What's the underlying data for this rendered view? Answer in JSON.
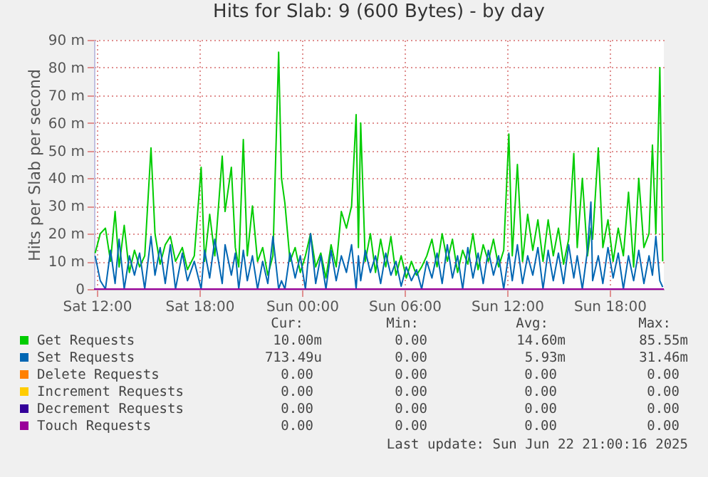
{
  "chart_data": {
    "type": "line",
    "title": "Hits for Slab: 9 (600 Bytes) - by day",
    "ylabel": "Hits per Slab per second",
    "x": [
      "2025-06-21T11:54",
      "2025-06-21T12:12",
      "2025-06-21T12:30",
      "2025-06-21T12:48",
      "2025-06-21T13:04",
      "2025-06-21T13:18",
      "2025-06-21T13:36",
      "2025-06-21T13:54",
      "2025-06-21T14:12",
      "2025-06-21T14:30",
      "2025-06-21T14:48",
      "2025-06-21T15:10",
      "2025-06-21T15:24",
      "2025-06-21T15:42",
      "2025-06-21T16:00",
      "2025-06-21T16:18",
      "2025-06-21T16:36",
      "2025-06-21T17:00",
      "2025-06-21T17:18",
      "2025-06-21T17:42",
      "2025-06-21T18:06",
      "2025-06-21T18:18",
      "2025-06-21T18:36",
      "2025-06-21T18:54",
      "2025-06-21T19:20",
      "2025-06-21T19:30",
      "2025-06-21T19:52",
      "2025-06-21T20:06",
      "2025-06-21T20:18",
      "2025-06-21T20:34",
      "2025-06-21T20:48",
      "2025-06-21T21:06",
      "2025-06-21T21:24",
      "2025-06-21T21:42",
      "2025-06-21T22:00",
      "2025-06-21T22:18",
      "2025-06-21T22:38",
      "2025-06-21T22:48",
      "2025-06-21T23:00",
      "2025-06-21T23:18",
      "2025-06-21T23:36",
      "2025-06-21T23:54",
      "2025-06-22T00:12",
      "2025-06-22T00:30",
      "2025-06-22T00:48",
      "2025-06-22T01:06",
      "2025-06-22T01:24",
      "2025-06-22T01:42",
      "2025-06-22T02:00",
      "2025-06-22T02:18",
      "2025-06-22T02:36",
      "2025-06-22T02:54",
      "2025-06-22T03:10",
      "2025-06-22T03:18",
      "2025-06-22T03:26",
      "2025-06-22T03:42",
      "2025-06-22T04:00",
      "2025-06-22T04:18",
      "2025-06-22T04:36",
      "2025-06-22T04:54",
      "2025-06-22T05:12",
      "2025-06-22T05:30",
      "2025-06-22T05:48",
      "2025-06-22T06:06",
      "2025-06-22T06:24",
      "2025-06-22T06:42",
      "2025-06-22T07:00",
      "2025-06-22T07:18",
      "2025-06-22T07:36",
      "2025-06-22T07:54",
      "2025-06-22T08:12",
      "2025-06-22T08:30",
      "2025-06-22T08:48",
      "2025-06-22T09:06",
      "2025-06-22T09:24",
      "2025-06-22T09:42",
      "2025-06-22T10:00",
      "2025-06-22T10:18",
      "2025-06-22T10:36",
      "2025-06-22T10:54",
      "2025-06-22T11:12",
      "2025-06-22T11:30",
      "2025-06-22T11:48",
      "2025-06-22T12:06",
      "2025-06-22T12:18",
      "2025-06-22T12:36",
      "2025-06-22T12:54",
      "2025-06-22T13:12",
      "2025-06-22T13:30",
      "2025-06-22T13:48",
      "2025-06-22T14:06",
      "2025-06-22T14:24",
      "2025-06-22T14:42",
      "2025-06-22T15:00",
      "2025-06-22T15:18",
      "2025-06-22T15:36",
      "2025-06-22T15:54",
      "2025-06-22T16:06",
      "2025-06-22T16:24",
      "2025-06-22T16:42",
      "2025-06-22T16:54",
      "2025-06-22T17:00",
      "2025-06-22T17:20",
      "2025-06-22T17:36",
      "2025-06-22T17:54",
      "2025-06-22T18:12",
      "2025-06-22T18:30",
      "2025-06-22T18:48",
      "2025-06-22T19:06",
      "2025-06-22T19:24",
      "2025-06-22T19:42",
      "2025-06-22T20:00",
      "2025-06-22T20:18",
      "2025-06-22T20:30",
      "2025-06-22T20:42",
      "2025-06-22T20:56",
      "2025-06-22T21:06"
    ],
    "series": [
      {
        "name": "Get Requests",
        "color": "#00cc00",
        "values": [
          13,
          20,
          22,
          10,
          28,
          8,
          23,
          6,
          14,
          8,
          12,
          51,
          20,
          9,
          16,
          19,
          10,
          15,
          7,
          12,
          44,
          10,
          27,
          12,
          48,
          28,
          44,
          15,
          8,
          54,
          12,
          30,
          10,
          15,
          5,
          12,
          85.55,
          40,
          31,
          10,
          15,
          6,
          12,
          20,
          8,
          13,
          4,
          16,
          8,
          28,
          22,
          30,
          63,
          15,
          60,
          10,
          20,
          6,
          18,
          8,
          19,
          5,
          12,
          4,
          10,
          5,
          8,
          12,
          18,
          8,
          20,
          10,
          18,
          6,
          14,
          9,
          20,
          7,
          16,
          10,
          18,
          8,
          14,
          56,
          12,
          45,
          10,
          27,
          14,
          25,
          10,
          25,
          12,
          22,
          9,
          18,
          49,
          15,
          40,
          12,
          22,
          18,
          51,
          15,
          25,
          10,
          22,
          12,
          35,
          8,
          40,
          15,
          20,
          52,
          20,
          80,
          10
        ]
      },
      {
        "name": "Set Requests",
        "color": "#0066b3",
        "values": [
          12,
          3,
          0,
          14,
          2,
          18,
          0,
          12,
          5,
          13,
          0,
          19,
          5,
          15,
          2,
          16,
          0,
          13,
          3,
          10,
          0,
          14,
          4,
          18,
          2,
          16,
          5,
          13,
          0,
          14,
          3,
          12,
          0,
          10,
          2,
          19,
          0,
          3,
          0,
          13,
          4,
          12,
          0,
          20,
          2,
          12,
          0,
          14,
          3,
          12,
          6,
          16,
          0,
          12,
          3,
          14,
          6,
          12,
          2,
          13,
          5,
          10,
          1,
          8,
          3,
          7,
          0,
          10,
          4,
          13,
          2,
          16,
          4,
          12,
          0,
          15,
          4,
          13,
          2,
          14,
          5,
          12,
          0,
          13,
          3,
          16,
          2,
          12,
          5,
          15,
          0,
          14,
          3,
          13,
          2,
          16,
          4,
          12,
          0,
          14,
          31.46,
          3,
          12,
          2,
          15,
          4,
          13,
          0,
          12,
          3,
          14,
          2,
          12,
          5,
          19,
          3,
          0.71
        ]
      },
      {
        "name": "Delete Requests",
        "color": "#ff8000",
        "values": [
          null,
          null,
          null,
          null,
          null,
          null,
          null,
          null,
          null,
          null,
          null,
          null,
          null,
          null,
          null,
          null,
          null,
          null,
          null,
          null,
          null,
          null,
          null,
          null,
          null,
          null,
          null,
          null,
          null,
          null,
          null,
          null,
          null,
          null,
          null,
          null,
          null,
          null,
          null,
          null,
          null,
          null,
          null,
          null,
          null,
          null,
          null,
          null,
          null,
          null,
          null,
          null,
          null,
          null,
          null,
          null,
          null,
          null,
          null,
          null,
          null,
          null,
          null,
          null,
          null,
          null,
          null,
          null,
          null,
          null,
          null,
          null,
          null,
          null,
          null,
          null,
          null,
          null,
          null,
          null,
          null,
          null,
          null,
          null,
          null,
          null,
          null,
          null,
          null,
          null,
          null,
          null,
          null,
          null,
          null,
          null,
          null,
          null,
          null,
          null,
          null,
          null,
          null,
          null,
          null,
          null,
          null,
          null,
          null,
          null,
          null,
          null,
          null,
          null,
          null,
          null,
          null
        ]
      },
      {
        "name": "Increment Requests",
        "color": "#ffcc00",
        "values": [
          null,
          null,
          null,
          null,
          null,
          null,
          null,
          null,
          null,
          null,
          null,
          null,
          null,
          null,
          null,
          null,
          null,
          null,
          null,
          null,
          null,
          null,
          null,
          null,
          null,
          null,
          null,
          null,
          null,
          null,
          null,
          null,
          null,
          null,
          null,
          null,
          null,
          null,
          null,
          null,
          null,
          null,
          null,
          null,
          null,
          null,
          null,
          null,
          null,
          null,
          null,
          null,
          null,
          null,
          null,
          null,
          null,
          null,
          null,
          null,
          null,
          null,
          null,
          null,
          null,
          null,
          null,
          null,
          null,
          null,
          null,
          null,
          null,
          null,
          null,
          null,
          null,
          null,
          null,
          null,
          null,
          null,
          null,
          null,
          null,
          null,
          null,
          null,
          null,
          null,
          null,
          null,
          null,
          null,
          null,
          null,
          null,
          null,
          null,
          null,
          null,
          null,
          null,
          null,
          null,
          null,
          null,
          null,
          null,
          null,
          null,
          null,
          null,
          null,
          null,
          null,
          null
        ]
      },
      {
        "name": "Decrement Requests",
        "color": "#330099",
        "values": [
          null,
          null,
          null,
          null,
          null,
          null,
          null,
          null,
          null,
          null,
          null,
          null,
          null,
          null,
          null,
          null,
          null,
          null,
          null,
          null,
          null,
          null,
          null,
          null,
          null,
          null,
          null,
          null,
          null,
          null,
          null,
          null,
          null,
          null,
          null,
          null,
          null,
          null,
          null,
          null,
          null,
          null,
          null,
          null,
          null,
          null,
          null,
          null,
          null,
          null,
          null,
          null,
          null,
          null,
          null,
          null,
          null,
          null,
          null,
          null,
          null,
          null,
          null,
          null,
          null,
          null,
          null,
          null,
          null,
          null,
          null,
          null,
          null,
          null,
          null,
          null,
          null,
          null,
          null,
          null,
          null,
          null,
          null,
          null,
          null,
          null,
          null,
          null,
          null,
          null,
          null,
          null,
          null,
          null,
          null,
          null,
          null,
          null,
          null,
          null,
          null,
          null,
          null,
          null,
          null,
          null,
          null,
          null,
          null,
          null,
          null,
          null,
          null,
          null,
          null,
          null,
          null
        ]
      },
      {
        "name": "Touch Requests",
        "color": "#990099",
        "x": [
          "2025-06-21T11:50",
          "2025-06-22T21:10"
        ],
        "values": [
          0,
          0
        ]
      }
    ],
    "xlim": [
      "2025-06-21T11:50",
      "2025-06-22T21:10"
    ],
    "xticks": [
      {
        "value": "2025-06-21T12:00",
        "label": "Sat 12:00"
      },
      {
        "value": "2025-06-21T18:00",
        "label": "Sat 18:00"
      },
      {
        "value": "2025-06-22T00:00",
        "label": "Sun 00:00"
      },
      {
        "value": "2025-06-22T06:00",
        "label": "Sun 06:00"
      },
      {
        "value": "2025-06-22T12:00",
        "label": "Sun 12:00"
      },
      {
        "value": "2025-06-22T18:00",
        "label": "Sun 18:00"
      }
    ],
    "ylim": [
      0,
      90
    ],
    "yticks": [
      0,
      {
        "value": 10,
        "label": "10 m"
      },
      {
        "value": 20,
        "label": "20 m"
      },
      {
        "value": 30,
        "label": "30 m"
      },
      {
        "value": 40,
        "label": "40 m"
      },
      {
        "value": 50,
        "label": "50 m"
      },
      {
        "value": 60,
        "label": "60 m"
      },
      {
        "value": 70,
        "label": "70 m"
      },
      {
        "value": 80,
        "label": "80 m"
      },
      {
        "value": 90,
        "label": "90 m"
      }
    ],
    "grid": true,
    "legend": "bottom",
    "line_style": "solid",
    "annotations": [
      "Cur:",
      "Min:",
      "Avg:",
      "Max:",
      "10.00m",
      "0.00",
      "14.60m",
      "85.55m",
      "713.49u",
      "0.00",
      "5.93m",
      "31.46m",
      "0.00",
      "0.00",
      "0.00",
      "0.00",
      "0.00",
      "0.00",
      "0.00",
      "0.00",
      "0.00",
      "0.00",
      "0.00",
      "0.00",
      "0.00",
      "0.00",
      "0.00",
      "0.00",
      "Last update: Sun Jun 22 21:00:16 2025"
    ]
  }
}
